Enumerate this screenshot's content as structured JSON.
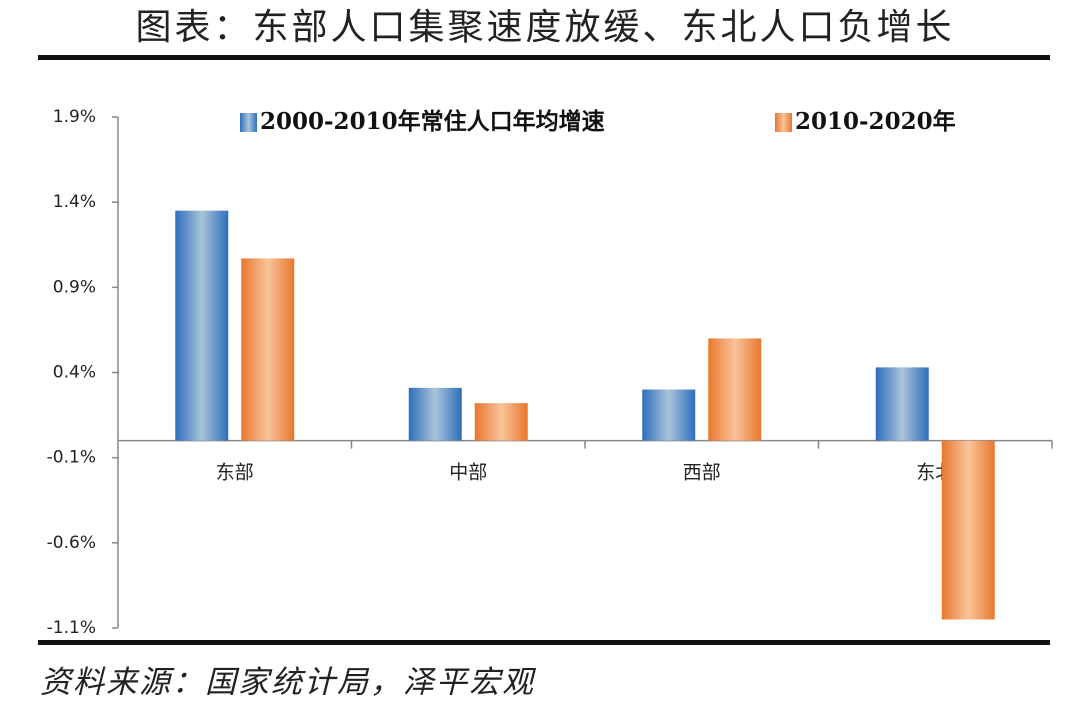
{
  "chart_data": {
    "type": "bar",
    "title": "图表：东部人口集聚速度放缓、东北人口负增长",
    "source": "资料来源：国家统计局，泽平宏观",
    "categories": [
      "东部",
      "中部",
      "西部",
      "东北"
    ],
    "series": [
      {
        "name": "2000-2010年常住人口年均增速",
        "color": "#2e6ebd",
        "values": [
          1.35,
          0.31,
          0.3,
          0.43
        ]
      },
      {
        "name": "2010-2020年",
        "color": "#e8772e",
        "values": [
          1.07,
          0.22,
          0.6,
          -1.05
        ]
      }
    ],
    "ylim": [
      -1.1,
      1.9
    ],
    "yticks": [
      {
        "value": -1.1,
        "label": "-1.1%"
      },
      {
        "value": -0.6,
        "label": "-0.6%"
      },
      {
        "value": -0.1,
        "label": "-0.1%"
      },
      {
        "value": 0.4,
        "label": "0.4%"
      },
      {
        "value": 0.9,
        "label": "0.9%"
      },
      {
        "value": 1.4,
        "label": "1.4%"
      },
      {
        "value": 1.9,
        "label": "1.9%"
      }
    ]
  }
}
